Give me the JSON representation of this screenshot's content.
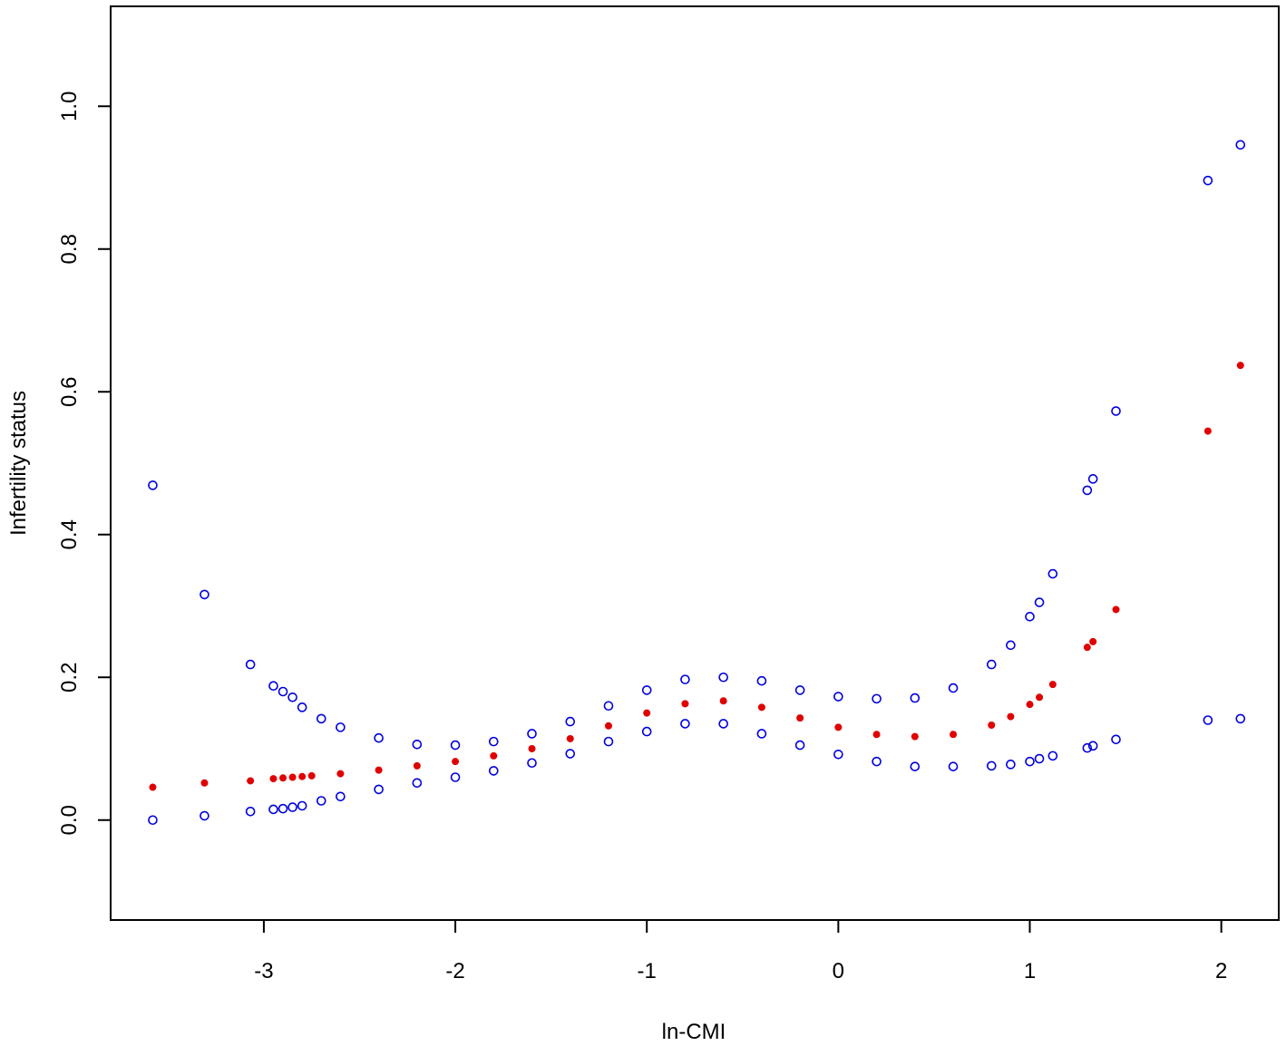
{
  "chart_data": {
    "type": "scatter",
    "xlabel": "ln-CMI",
    "ylabel": "Infertility status",
    "xlim": [
      -3.8,
      2.3
    ],
    "ylim": [
      -0.14,
      1.14
    ],
    "xticks": [
      -3,
      -2,
      -1,
      0,
      1,
      2
    ],
    "yticks": [
      0.0,
      0.2,
      0.4,
      0.6,
      0.8,
      1.0
    ],
    "xtick_labels": [
      "-3",
      "-2",
      "-1",
      "0",
      "1",
      "2"
    ],
    "ytick_labels": [
      "0.0",
      "0.2",
      "0.4",
      "0.6",
      "0.8",
      "1.0"
    ],
    "grid": false,
    "colors": {
      "estimate": "#e00000",
      "bounds": "#0000e0"
    },
    "series": [
      {
        "marker": "filled-dot",
        "color": "#e00000",
        "points": [
          [
            -3.58,
            0.046
          ],
          [
            -3.31,
            0.052
          ],
          [
            -3.07,
            0.055
          ],
          [
            -2.95,
            0.058
          ],
          [
            -2.9,
            0.059
          ],
          [
            -2.85,
            0.06
          ],
          [
            -2.8,
            0.061
          ],
          [
            -2.75,
            0.062
          ],
          [
            -2.6,
            0.065
          ],
          [
            -2.4,
            0.07
          ],
          [
            -2.2,
            0.076
          ],
          [
            -2.0,
            0.082
          ],
          [
            -1.8,
            0.09
          ],
          [
            -1.6,
            0.1
          ],
          [
            -1.4,
            0.114
          ],
          [
            -1.2,
            0.132
          ],
          [
            -1.0,
            0.15
          ],
          [
            -0.8,
            0.163
          ],
          [
            -0.6,
            0.167
          ],
          [
            -0.4,
            0.158
          ],
          [
            -0.2,
            0.143
          ],
          [
            0.0,
            0.13
          ],
          [
            0.2,
            0.12
          ],
          [
            0.4,
            0.117
          ],
          [
            0.6,
            0.12
          ],
          [
            0.8,
            0.133
          ],
          [
            0.9,
            0.145
          ],
          [
            1.0,
            0.162
          ],
          [
            1.05,
            0.172
          ],
          [
            1.12,
            0.19
          ],
          [
            1.3,
            0.242
          ],
          [
            1.33,
            0.25
          ],
          [
            1.45,
            0.295
          ],
          [
            1.93,
            0.545
          ],
          [
            2.1,
            0.637
          ]
        ]
      },
      {
        "marker": "open-circle",
        "color": "#0000e0",
        "points": [
          [
            -3.58,
            0.469
          ],
          [
            -3.31,
            0.316
          ],
          [
            -3.07,
            0.218
          ],
          [
            -2.95,
            0.188
          ],
          [
            -2.9,
            0.18
          ],
          [
            -2.85,
            0.172
          ],
          [
            -2.8,
            0.158
          ],
          [
            -2.7,
            0.142
          ],
          [
            -2.6,
            0.13
          ],
          [
            -2.4,
            0.115
          ],
          [
            -2.2,
            0.106
          ],
          [
            -2.0,
            0.105
          ],
          [
            -1.8,
            0.11
          ],
          [
            -1.6,
            0.121
          ],
          [
            -1.4,
            0.138
          ],
          [
            -1.2,
            0.16
          ],
          [
            -1.0,
            0.182
          ],
          [
            -0.8,
            0.197
          ],
          [
            -0.6,
            0.2
          ],
          [
            -0.4,
            0.195
          ],
          [
            -0.2,
            0.182
          ],
          [
            0.0,
            0.173
          ],
          [
            0.2,
            0.17
          ],
          [
            0.4,
            0.171
          ],
          [
            0.6,
            0.185
          ],
          [
            0.8,
            0.218
          ],
          [
            0.9,
            0.245
          ],
          [
            1.0,
            0.285
          ],
          [
            1.05,
            0.305
          ],
          [
            1.12,
            0.345
          ],
          [
            1.3,
            0.462
          ],
          [
            1.33,
            0.478
          ],
          [
            1.45,
            0.573
          ],
          [
            1.93,
            0.896
          ],
          [
            2.1,
            0.946
          ]
        ]
      },
      {
        "marker": "open-circle",
        "color": "#0000e0",
        "points": [
          [
            -3.58,
            0.0
          ],
          [
            -3.31,
            0.006
          ],
          [
            -3.07,
            0.012
          ],
          [
            -2.95,
            0.015
          ],
          [
            -2.9,
            0.016
          ],
          [
            -2.85,
            0.018
          ],
          [
            -2.8,
            0.02
          ],
          [
            -2.7,
            0.027
          ],
          [
            -2.6,
            0.033
          ],
          [
            -2.4,
            0.043
          ],
          [
            -2.2,
            0.052
          ],
          [
            -2.0,
            0.06
          ],
          [
            -1.8,
            0.069
          ],
          [
            -1.6,
            0.08
          ],
          [
            -1.4,
            0.093
          ],
          [
            -1.2,
            0.11
          ],
          [
            -1.0,
            0.124
          ],
          [
            -0.8,
            0.135
          ],
          [
            -0.6,
            0.135
          ],
          [
            -0.4,
            0.121
          ],
          [
            -0.2,
            0.105
          ],
          [
            0.0,
            0.092
          ],
          [
            0.2,
            0.082
          ],
          [
            0.4,
            0.075
          ],
          [
            0.6,
            0.075
          ],
          [
            0.8,
            0.076
          ],
          [
            0.9,
            0.078
          ],
          [
            1.0,
            0.082
          ],
          [
            1.05,
            0.086
          ],
          [
            1.12,
            0.09
          ],
          [
            1.3,
            0.101
          ],
          [
            1.33,
            0.104
          ],
          [
            1.45,
            0.113
          ],
          [
            1.93,
            0.14
          ],
          [
            2.1,
            0.142
          ]
        ]
      }
    ]
  }
}
